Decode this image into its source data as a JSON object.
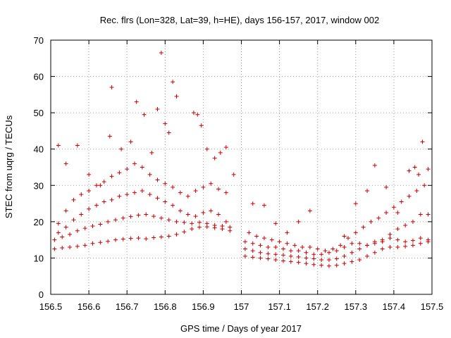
{
  "chart_data": {
    "type": "scatter",
    "title": "Rec. flrs (Lon=328, Lat=39, h=HE), days 156-157, 2017, window 002",
    "xlabel": "GPS time / Days of year 2017",
    "ylabel": "STEC from uqrg / TECUs",
    "xlim": [
      156.5,
      157.5
    ],
    "ylim": [
      0,
      70
    ],
    "xticks": [
      "156.5",
      "156.6",
      "156.7",
      "156.8",
      "156.9",
      "157",
      "157.1",
      "157.2",
      "157.3",
      "157.4",
      "157.5"
    ],
    "yticks": [
      "0",
      "10",
      "20",
      "30",
      "40",
      "50",
      "60",
      "70"
    ],
    "grid": true,
    "marker": "+",
    "color": "#cc0000",
    "series": [
      {
        "name": "s1",
        "x": [
          156.51,
          156.53,
          156.55,
          156.57,
          156.59,
          156.61,
          156.63,
          156.65,
          156.67,
          156.69,
          156.71,
          156.73,
          156.75,
          156.77,
          156.79,
          156.81,
          156.83,
          156.85,
          156.87,
          156.89,
          156.91,
          156.93,
          156.95,
          156.97
        ],
        "y": [
          12.5,
          12.8,
          13.0,
          13.2,
          13.5,
          14.0,
          14.3,
          14.6,
          15.0,
          15.2,
          15.4,
          15.5,
          15.3,
          15.6,
          15.8,
          16.0,
          16.5,
          17.2,
          18.0,
          18.5,
          18.6,
          18.3,
          18.0,
          17.5
        ]
      },
      {
        "name": "s2",
        "x": [
          156.51,
          156.53,
          156.55,
          156.57,
          156.59,
          156.61,
          156.63,
          156.65,
          156.67,
          156.69,
          156.71,
          156.73,
          156.75,
          156.77,
          156.79,
          156.81,
          156.83,
          156.85,
          156.87,
          156.89,
          156.91,
          156.93,
          156.95,
          156.97
        ],
        "y": [
          15.0,
          15.8,
          16.5,
          17.5,
          18.2,
          18.8,
          19.3,
          20.0,
          20.5,
          21.0,
          21.4,
          21.8,
          22.0,
          21.5,
          21.0,
          20.5,
          20.0,
          19.8,
          19.5,
          19.8,
          19.5,
          19.0,
          18.8,
          18.5
        ]
      },
      {
        "name": "s3",
        "x": [
          156.52,
          156.54,
          156.56,
          156.58,
          156.6,
          156.62,
          156.64,
          156.66,
          156.68,
          156.7,
          156.72,
          156.74,
          156.76,
          156.78,
          156.8,
          156.82,
          156.84,
          156.86,
          156.88,
          156.9,
          156.92,
          156.94,
          156.96
        ],
        "y": [
          17.0,
          18.5,
          20.5,
          22.0,
          23.5,
          24.5,
          25.5,
          26.0,
          27.0,
          27.5,
          28.0,
          28.5,
          27.5,
          26.5,
          25.5,
          24.5,
          23.0,
          22.0,
          21.5,
          22.5,
          23.0,
          22.0,
          20.0
        ]
      },
      {
        "name": "s4",
        "x": [
          156.52,
          156.54,
          156.56,
          156.58,
          156.6,
          156.62,
          156.64,
          156.66,
          156.68,
          156.7,
          156.72,
          156.74,
          156.76,
          156.78,
          156.8,
          156.82,
          156.84,
          156.86,
          156.88,
          156.9,
          156.92,
          156.94,
          156.96
        ],
        "y": [
          19.5,
          23.0,
          26.0,
          27.5,
          28.5,
          30.0,
          31.0,
          32.5,
          33.5,
          34.5,
          36.0,
          35.0,
          33.0,
          31.5,
          30.5,
          29.5,
          28.0,
          27.0,
          28.5,
          29.5,
          30.5,
          29.0,
          28.0
        ]
      },
      {
        "name": "s5",
        "x": [
          156.52,
          156.54,
          156.57,
          156.6,
          156.63,
          156.655,
          156.66,
          156.685,
          156.71,
          156.725,
          156.745,
          156.765,
          156.78,
          156.79,
          156.8,
          156.81,
          156.82,
          156.83,
          156.875,
          156.885,
          156.895,
          156.91,
          156.93,
          156.945,
          156.96,
          156.98
        ],
        "y": [
          41.0,
          36.0,
          41.0,
          33.0,
          30.0,
          43.5,
          57.0,
          40.0,
          42.0,
          53.0,
          49.5,
          39.0,
          51.0,
          66.5,
          47.0,
          44.5,
          58.5,
          54.5,
          50.0,
          49.5,
          46.5,
          40.0,
          37.5,
          39.0,
          40.5,
          33.0
        ]
      },
      {
        "name": "s6",
        "x": [
          157.01,
          157.03,
          157.05,
          157.07,
          157.09,
          157.11,
          157.13,
          157.15,
          157.17,
          157.19,
          157.21,
          157.23,
          157.25,
          157.27,
          157.29,
          157.31,
          157.33,
          157.35,
          157.37,
          157.39,
          157.41,
          157.43,
          157.45,
          157.47,
          157.49
        ],
        "y": [
          10.5,
          10.2,
          10.0,
          9.8,
          9.5,
          9.2,
          9.0,
          8.8,
          8.5,
          8.2,
          8.0,
          7.8,
          8.0,
          8.5,
          9.0,
          9.5,
          10.5,
          11.5,
          12.5,
          13.0,
          13.0,
          13.2,
          13.5,
          14.0,
          14.5
        ]
      },
      {
        "name": "s7",
        "x": [
          157.01,
          157.03,
          157.05,
          157.07,
          157.09,
          157.11,
          157.13,
          157.15,
          157.17,
          157.19,
          157.21,
          157.23,
          157.25,
          157.27,
          157.29,
          157.31,
          157.33,
          157.35,
          157.37,
          157.39,
          157.41,
          157.43,
          157.45,
          157.47,
          157.49
        ],
        "y": [
          12.5,
          12.0,
          11.5,
          11.2,
          11.0,
          10.8,
          10.5,
          10.3,
          10.0,
          9.8,
          9.5,
          9.5,
          9.8,
          10.5,
          11.5,
          12.5,
          13.5,
          14.5,
          15.0,
          15.5,
          15.0,
          14.5,
          14.8,
          15.5,
          15.0
        ]
      },
      {
        "name": "s8",
        "x": [
          157.01,
          157.03,
          157.05,
          157.07,
          157.09,
          157.11,
          157.13,
          157.15,
          157.17,
          157.19,
          157.21,
          157.23,
          157.25,
          157.27,
          157.29,
          157.31,
          157.33,
          157.35,
          157.37,
          157.39,
          157.41,
          157.43,
          157.45,
          157.47,
          157.49
        ],
        "y": [
          14.5,
          14.0,
          13.5,
          13.0,
          13.0,
          12.5,
          12.0,
          12.0,
          11.5,
          11.0,
          11.0,
          11.5,
          12.0,
          13.0,
          14.0,
          14.0,
          13.5,
          14.0,
          14.5,
          16.5,
          18.0,
          19.0,
          20.0,
          22.0,
          22.0
        ]
      },
      {
        "name": "s9",
        "x": [
          157.02,
          157.04,
          157.06,
          157.08,
          157.1,
          157.12,
          157.14,
          157.16,
          157.18,
          157.2,
          157.22,
          157.24,
          157.26,
          157.28,
          157.3,
          157.32,
          157.34,
          157.36,
          157.38,
          157.4,
          157.42,
          157.44,
          157.46,
          157.48
        ],
        "y": [
          17.0,
          16.0,
          15.5,
          15.0,
          14.5,
          14.0,
          13.5,
          13.0,
          13.0,
          12.5,
          12.0,
          12.5,
          13.5,
          15.5,
          17.0,
          18.5,
          20.0,
          21.0,
          22.5,
          24.0,
          25.5,
          27.0,
          28.5,
          30.0
        ]
      },
      {
        "name": "s10",
        "x": [
          157.03,
          157.06,
          157.09,
          157.12,
          157.15,
          157.18,
          157.27,
          157.3,
          157.33,
          157.35,
          157.38,
          157.41,
          157.44,
          157.455,
          157.465,
          157.475,
          157.49
        ],
        "y": [
          25.0,
          24.5,
          19.5,
          17.0,
          20.0,
          23.0,
          16.0,
          25.0,
          28.5,
          35.5,
          29.5,
          22.5,
          34.0,
          35.0,
          33.0,
          42.0,
          34.5
        ]
      }
    ]
  }
}
